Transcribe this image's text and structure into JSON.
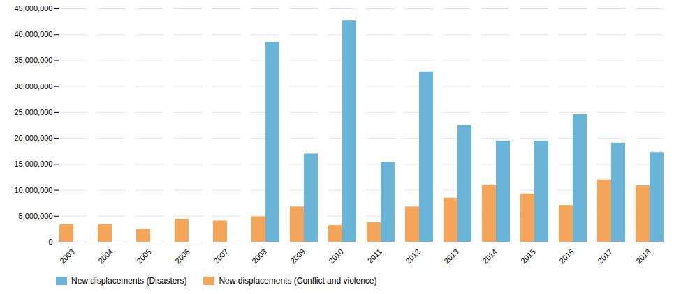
{
  "chart_data": {
    "type": "bar",
    "categories": [
      "2003",
      "2004",
      "2005",
      "2006",
      "2007",
      "2008",
      "2009",
      "2010",
      "2011",
      "2012",
      "2013",
      "2014",
      "2015",
      "2016",
      "2017",
      "2018"
    ],
    "series": [
      {
        "name": "New displacements (Disasters)",
        "color": "#6ab4d8",
        "values": [
          0,
          0,
          0,
          0,
          0,
          38500000,
          17000000,
          42700000,
          15400000,
          32800000,
          22500000,
          19500000,
          19500000,
          24600000,
          19100000,
          17300000
        ]
      },
      {
        "name": "New displacements (Conflict and violence)",
        "color": "#f5a55a",
        "values": [
          3400000,
          3400000,
          2500000,
          4400000,
          4100000,
          4900000,
          6800000,
          3200000,
          3800000,
          6800000,
          8500000,
          11000000,
          9300000,
          7100000,
          12000000,
          10900000
        ]
      }
    ],
    "ylim": [
      0,
      45000000
    ],
    "yticks": [
      0,
      {
        "value": 5000000,
        "label": "5,000,000"
      },
      {
        "value": 10000000,
        "label": "10,000,000"
      },
      {
        "value": 15000000,
        "label": "15,000,000"
      },
      {
        "value": 20000000,
        "label": "20,000,000"
      },
      {
        "value": 25000000,
        "label": "25,000,000"
      },
      {
        "value": 30000000,
        "label": "30,000,000"
      },
      {
        "value": 35000000,
        "label": "35,000,000"
      },
      {
        "value": 40000000,
        "label": "40,000,000"
      },
      {
        "value": 45000000,
        "label": "45,000,000"
      }
    ],
    "grid": true,
    "legend": "bottom"
  }
}
